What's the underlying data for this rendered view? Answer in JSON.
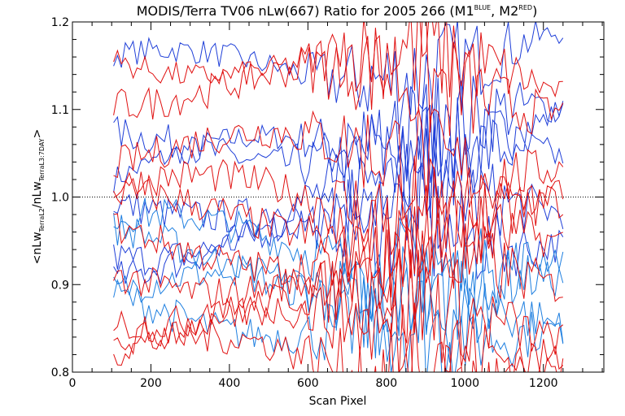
{
  "chart_data": {
    "type": "line",
    "title": {
      "main": "MODIS/Terra TV06 nLw(667) Ratio for 2005 266 (M1",
      "sup1": "BLUE",
      "mid": ", M2",
      "sup2": "RED",
      "end": ")"
    },
    "xlabel": "Scan Pixel",
    "ylabel": {
      "pre": "<nLw",
      "sub1": "TerraL2",
      "mid": "/nLw",
      "sub2": "TerraL3:7DAY",
      "post": ">"
    },
    "xlim": [
      0,
      1354
    ],
    "ylim": [
      0.8,
      1.2
    ],
    "xticks": [
      "0",
      "200",
      "400",
      "600",
      "800",
      "1000",
      "1200"
    ],
    "yticks": [
      "0.8",
      "0.9",
      "1.0",
      "1.1",
      "1.2"
    ],
    "reference_line": 1.0,
    "x_range": [
      105,
      1250
    ],
    "colors": {
      "blue": "#1f3fd8",
      "lightblue": "#1e7fe0",
      "red": "#e01010",
      "ref": "#000000"
    },
    "series": [
      {
        "color": "blue",
        "start": 1.02,
        "end": 1.1,
        "amp": 0.015
      },
      {
        "color": "blue",
        "start": 1.14,
        "end": 1.17,
        "amp": 0.015
      },
      {
        "color": "blue",
        "start": 1.05,
        "end": 1.08,
        "amp": 0.02
      },
      {
        "color": "blue",
        "start": 0.99,
        "end": 1.04,
        "amp": 0.02
      },
      {
        "color": "blue",
        "start": 0.95,
        "end": 1.0,
        "amp": 0.02
      },
      {
        "color": "blue",
        "start": 0.93,
        "end": 0.97,
        "amp": 0.02
      },
      {
        "color": "lightblue",
        "start": 0.9,
        "end": 0.86,
        "amp": 0.02
      },
      {
        "color": "lightblue",
        "start": 0.96,
        "end": 0.92,
        "amp": 0.02
      },
      {
        "color": "lightblue",
        "start": 0.94,
        "end": 0.88,
        "amp": 0.02
      },
      {
        "color": "lightblue",
        "start": 0.88,
        "end": 0.84,
        "amp": 0.02
      },
      {
        "color": "red",
        "start": 1.17,
        "end": 1.13,
        "amp": 0.015
      },
      {
        "color": "red",
        "start": 1.13,
        "end": 1.12,
        "amp": 0.02
      },
      {
        "color": "red",
        "start": 1.05,
        "end": 1.05,
        "amp": 0.02
      },
      {
        "color": "red",
        "start": 1.0,
        "end": 1.0,
        "amp": 0.02
      },
      {
        "color": "red",
        "start": 0.98,
        "end": 0.97,
        "amp": 0.02
      },
      {
        "color": "red",
        "start": 0.95,
        "end": 0.93,
        "amp": 0.02
      },
      {
        "color": "red",
        "start": 0.92,
        "end": 0.9,
        "amp": 0.02
      },
      {
        "color": "red",
        "start": 0.88,
        "end": 0.86,
        "amp": 0.02
      },
      {
        "color": "red",
        "start": 0.85,
        "end": 0.84,
        "amp": 0.02
      },
      {
        "color": "red",
        "start": 0.82,
        "end": 0.8,
        "amp": 0.02
      }
    ]
  }
}
